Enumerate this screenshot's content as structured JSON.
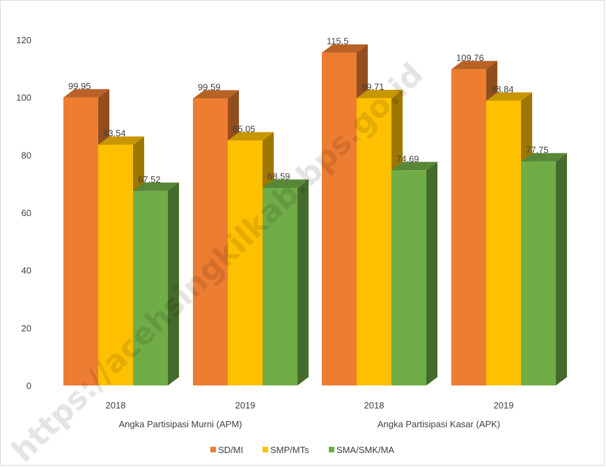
{
  "chart_data": {
    "type": "bar",
    "categories": [
      "2018",
      "2019",
      "2018",
      "2019"
    ],
    "groups": [
      {
        "label": "Angka Partisipasi Murni (APM)",
        "categories": [
          0,
          1
        ]
      },
      {
        "label": "Angka Partisipasi Kasar (APK)",
        "categories": [
          2,
          3
        ]
      }
    ],
    "series": [
      {
        "name": "SD/MI",
        "color": "#ED7D31",
        "values": [
          99.95,
          99.59,
          115.5,
          109.76
        ],
        "labels": [
          "99.95",
          "99.59",
          "115.5",
          "109.76"
        ]
      },
      {
        "name": "SMP/MTs",
        "color": "#FFC000",
        "values": [
          83.54,
          85.05,
          99.71,
          98.84
        ],
        "labels": [
          "83.54",
          "85.05",
          "99.71",
          "98.84"
        ]
      },
      {
        "name": "SMA/SMK/MA",
        "color": "#70AD47",
        "values": [
          67.52,
          68.59,
          74.69,
          77.75
        ],
        "labels": [
          "67.52",
          "68.59",
          "74.69",
          "77.75"
        ]
      }
    ],
    "yticks": [
      "0",
      "20",
      "40",
      "60",
      "80",
      "100",
      "120"
    ],
    "ylim": [
      0,
      120
    ],
    "three_d": true,
    "grid": false,
    "legend_position": "bottom"
  },
  "watermark": "https://acehsingkilkab.bps.go.id"
}
